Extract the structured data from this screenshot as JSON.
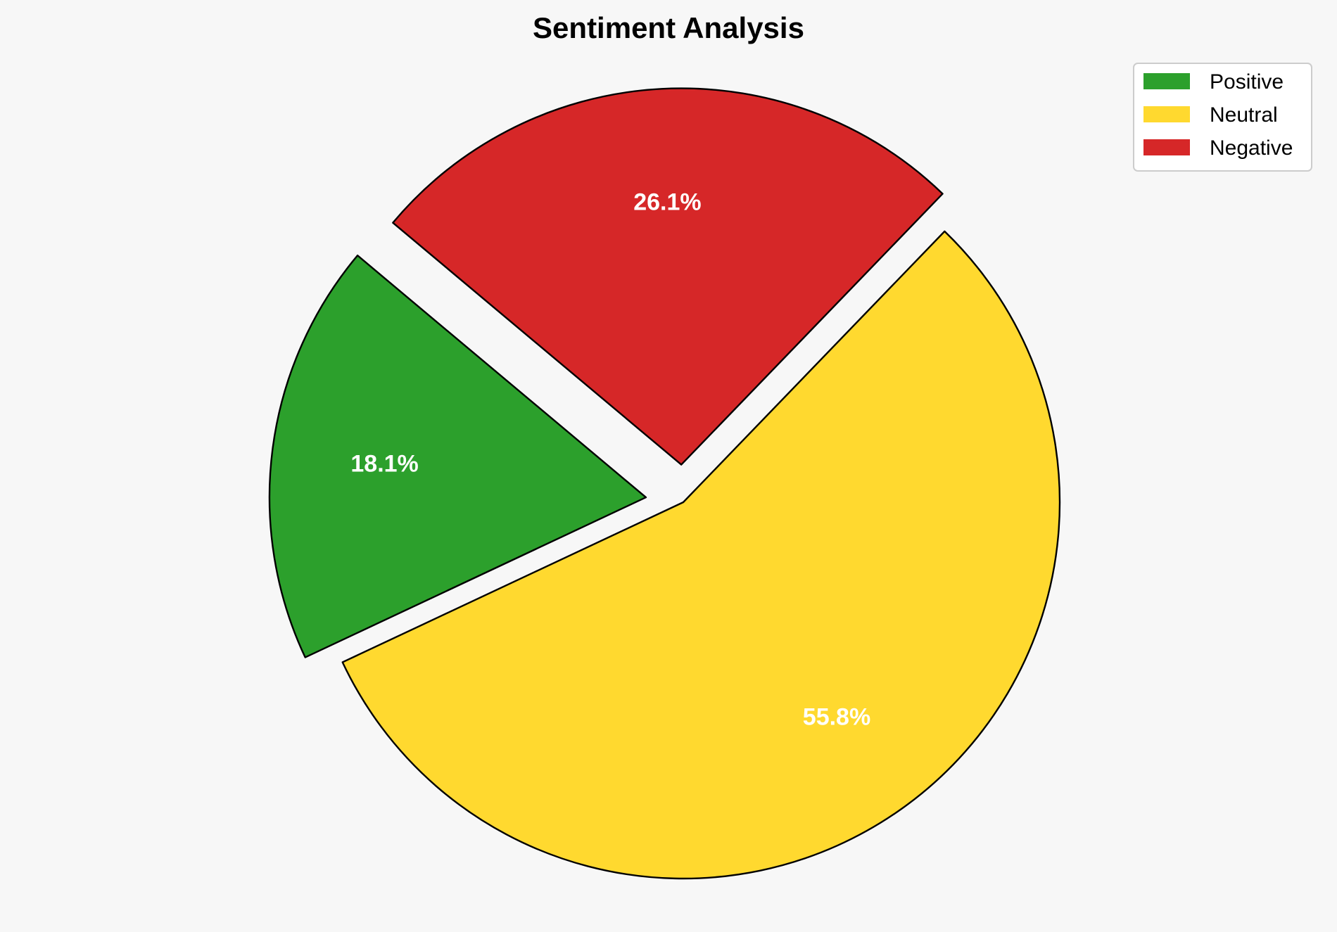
{
  "chart_data": {
    "type": "pie",
    "title": "Sentiment Analysis",
    "categories": [
      "Positive",
      "Neutral",
      "Negative"
    ],
    "values": [
      18.1,
      55.8,
      26.1
    ],
    "labels": [
      "18.1%",
      "55.8%",
      "26.1%"
    ],
    "colors": [
      "#2ca02c",
      "#ffd92f",
      "#d62728"
    ],
    "explode": [
      0.1,
      0,
      0.1
    ],
    "start_angle": 140,
    "direction": "counterclockwise",
    "edge_color": "#000000",
    "label_color": "#ffffff",
    "legend_position": "top-right",
    "background": "#f7f7f7"
  }
}
